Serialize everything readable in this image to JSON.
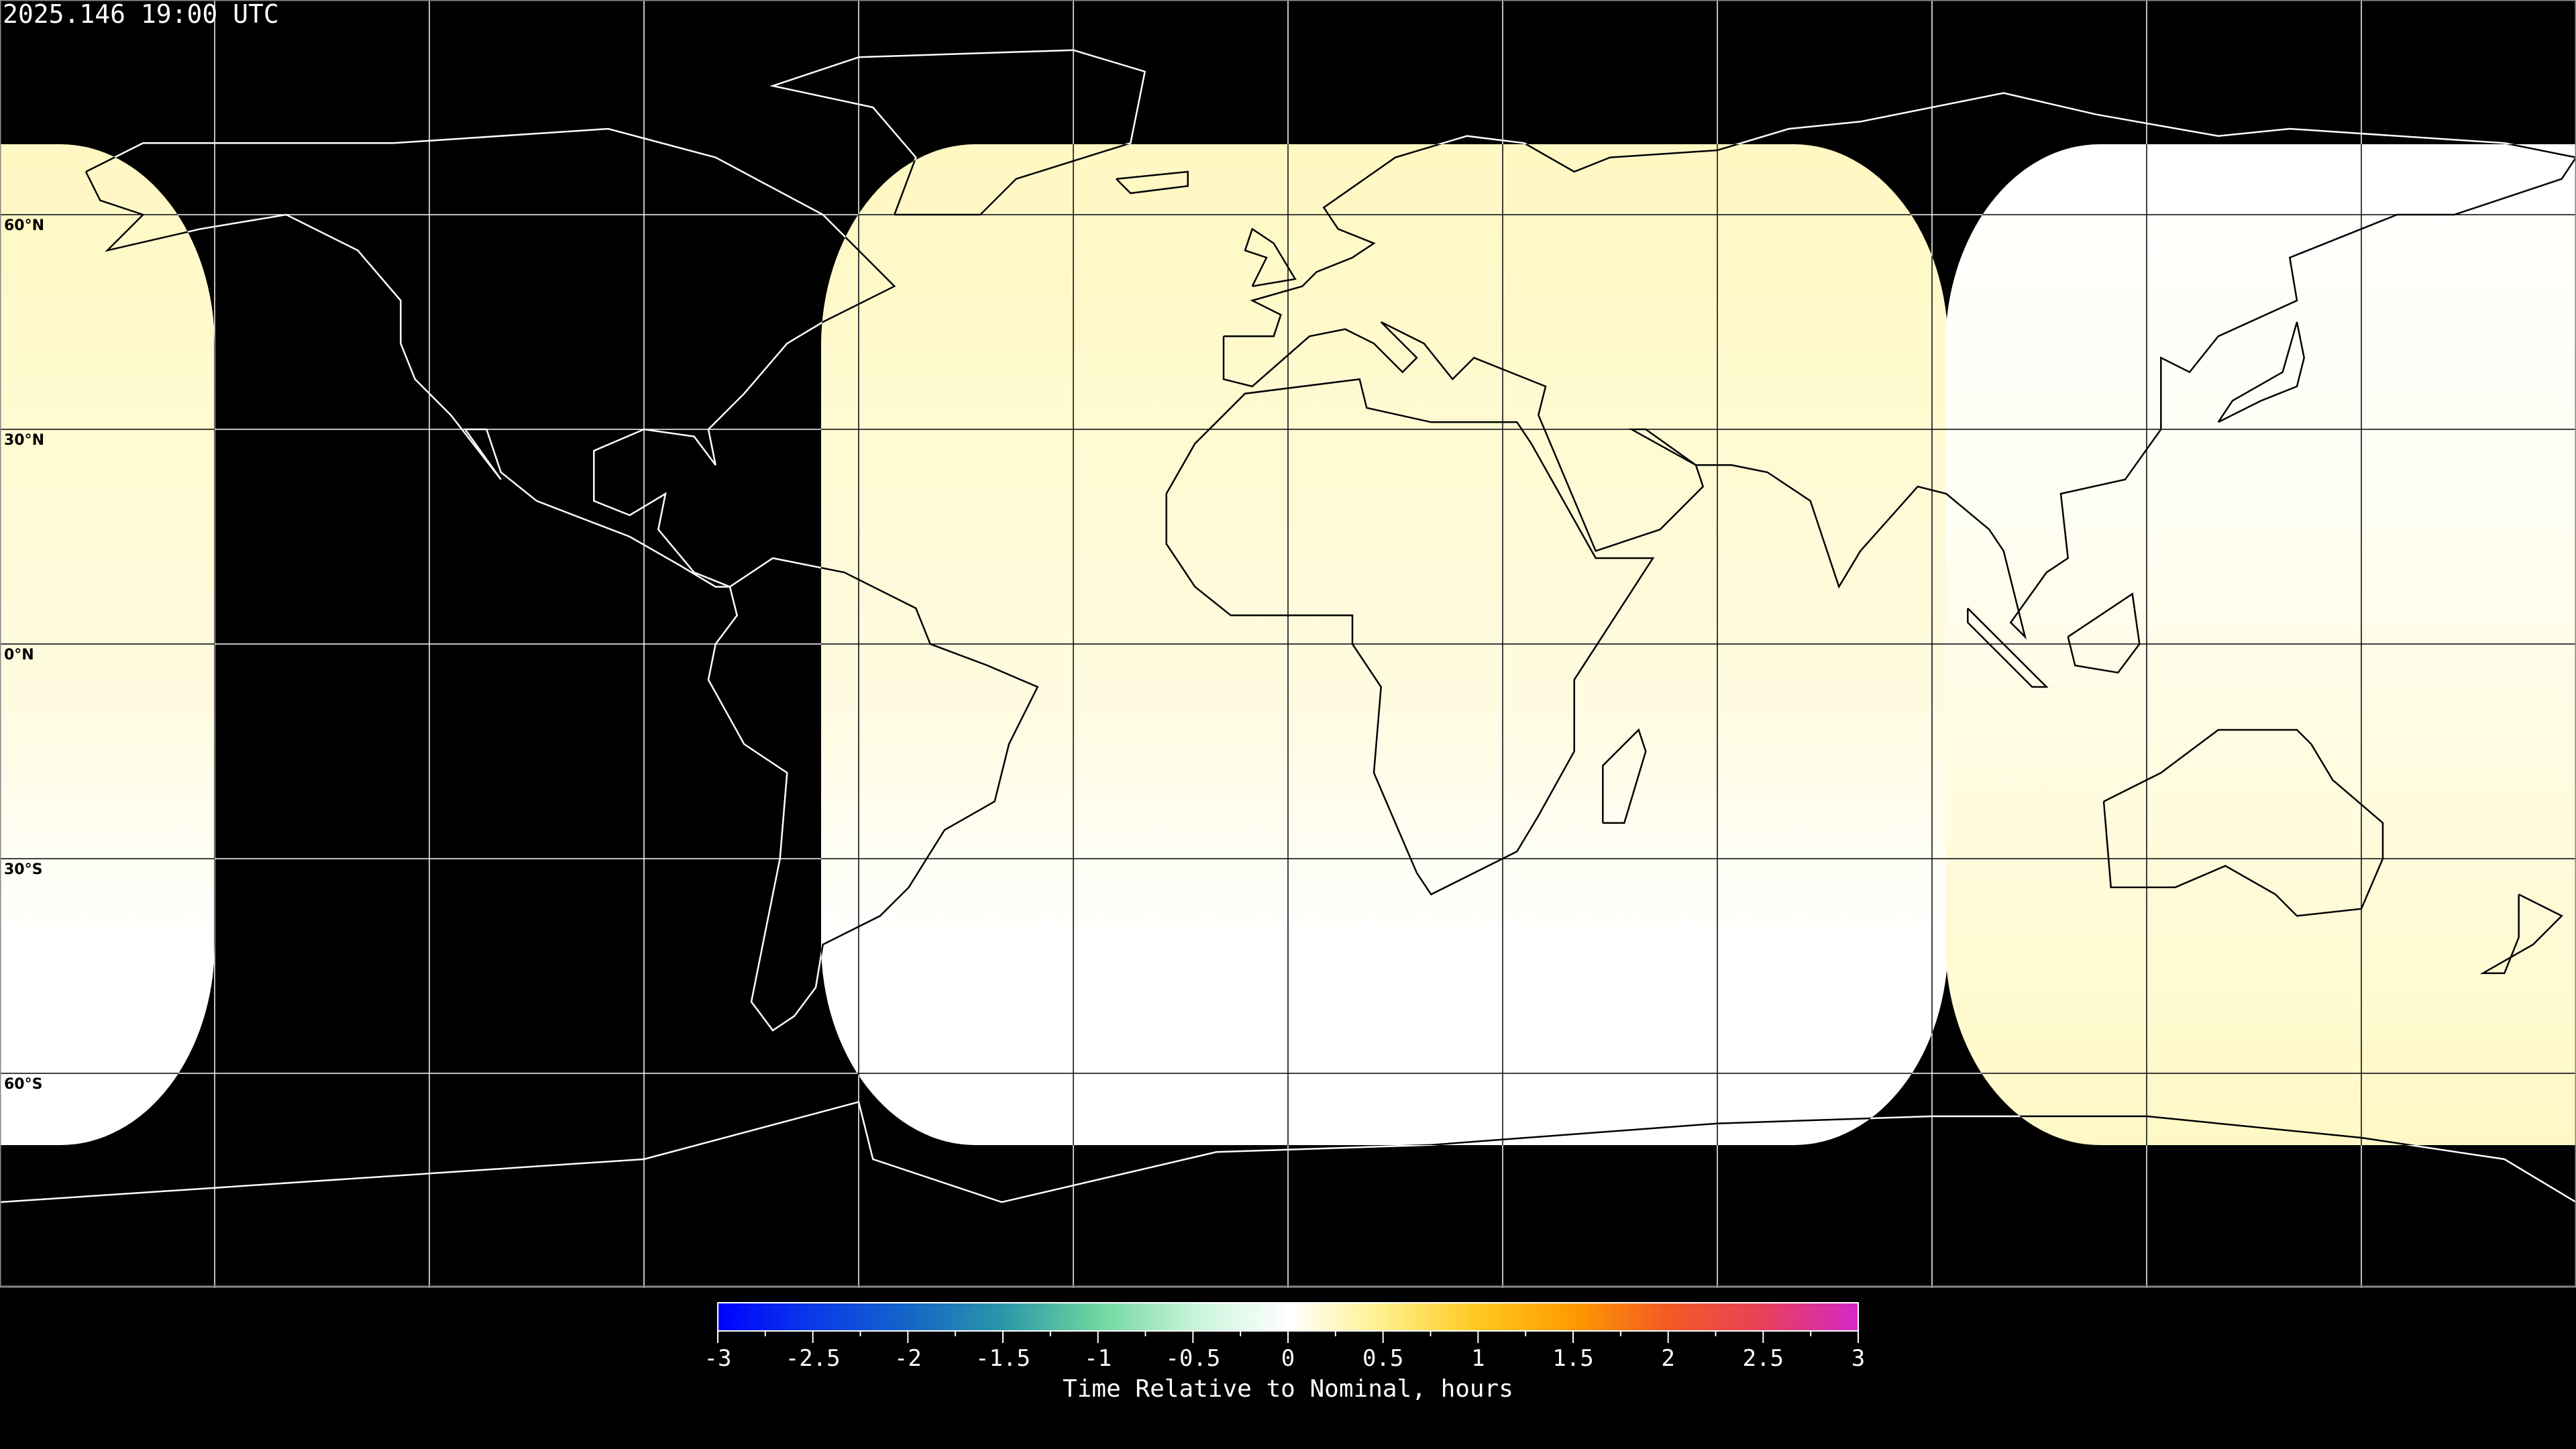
{
  "header": {
    "title": "2025.146 19:00 UTC"
  },
  "map": {
    "projection": "equirectangular",
    "gridline_spacing_degrees": 30,
    "lat_labels": [
      "60°N",
      "30°N",
      "0°N",
      "30°S",
      "60°S"
    ],
    "coverage_colors": {
      "low": "#ffffff",
      "high": "#fff8c2"
    },
    "background": "#000000"
  },
  "colorbar": {
    "label": "Time Relative to Nominal, hours",
    "range": [
      -3,
      3
    ],
    "ticks": [
      "-3",
      "-2.5",
      "-2",
      "-1.5",
      "-1",
      "-0.5",
      "0",
      "0.5",
      "1",
      "1.5",
      "2",
      "2.5",
      "3"
    ],
    "colors": [
      "#0000ff",
      "#0a3ae8",
      "#1466c8",
      "#2a96a8",
      "#6ed7a0",
      "#c6f3d8",
      "#ffffff",
      "#fff08a",
      "#ffc820",
      "#ff9a00",
      "#f25a24",
      "#e8405a",
      "#d228c8"
    ]
  }
}
